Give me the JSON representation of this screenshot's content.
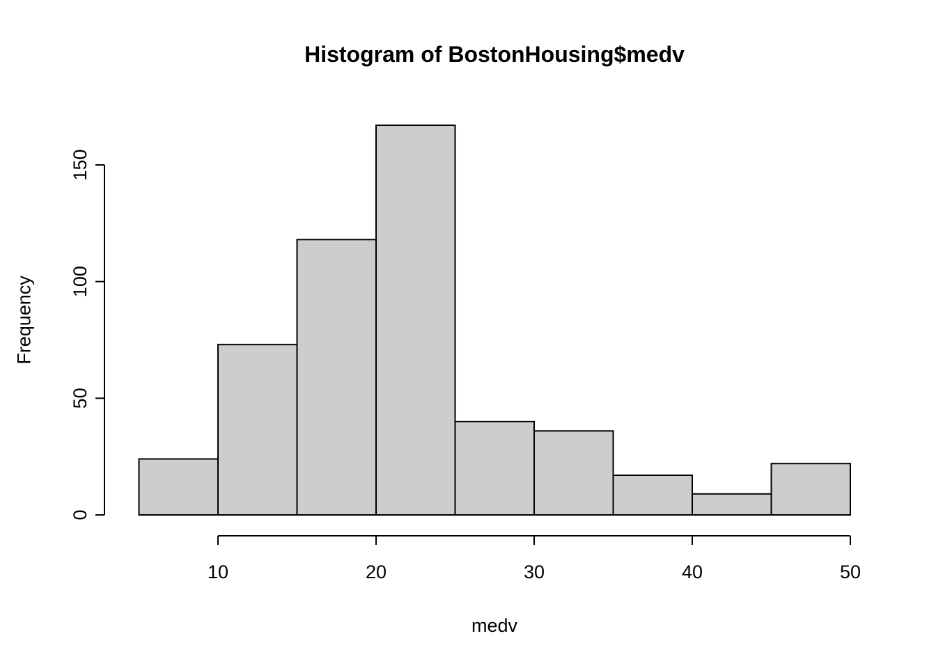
{
  "chart_data": {
    "type": "bar",
    "subtype": "histogram",
    "title": "Histogram of BostonHousing$medv",
    "xlabel": "medv",
    "ylabel": "Frequency",
    "bin_edges": [
      5,
      10,
      15,
      20,
      25,
      30,
      35,
      40,
      45,
      50
    ],
    "counts": [
      24,
      73,
      118,
      167,
      40,
      36,
      17,
      9,
      22
    ],
    "x_ticks": [
      10,
      20,
      30,
      40,
      50
    ],
    "y_ticks": [
      0,
      50,
      100,
      150
    ],
    "xlim": [
      5,
      50
    ],
    "ylim": [
      0,
      170
    ],
    "grid": false,
    "legend": "none",
    "colors": {
      "bar_fill": "#cdcdcd",
      "bar_stroke": "#000000",
      "axis": "#000000",
      "background": "#ffffff"
    }
  }
}
